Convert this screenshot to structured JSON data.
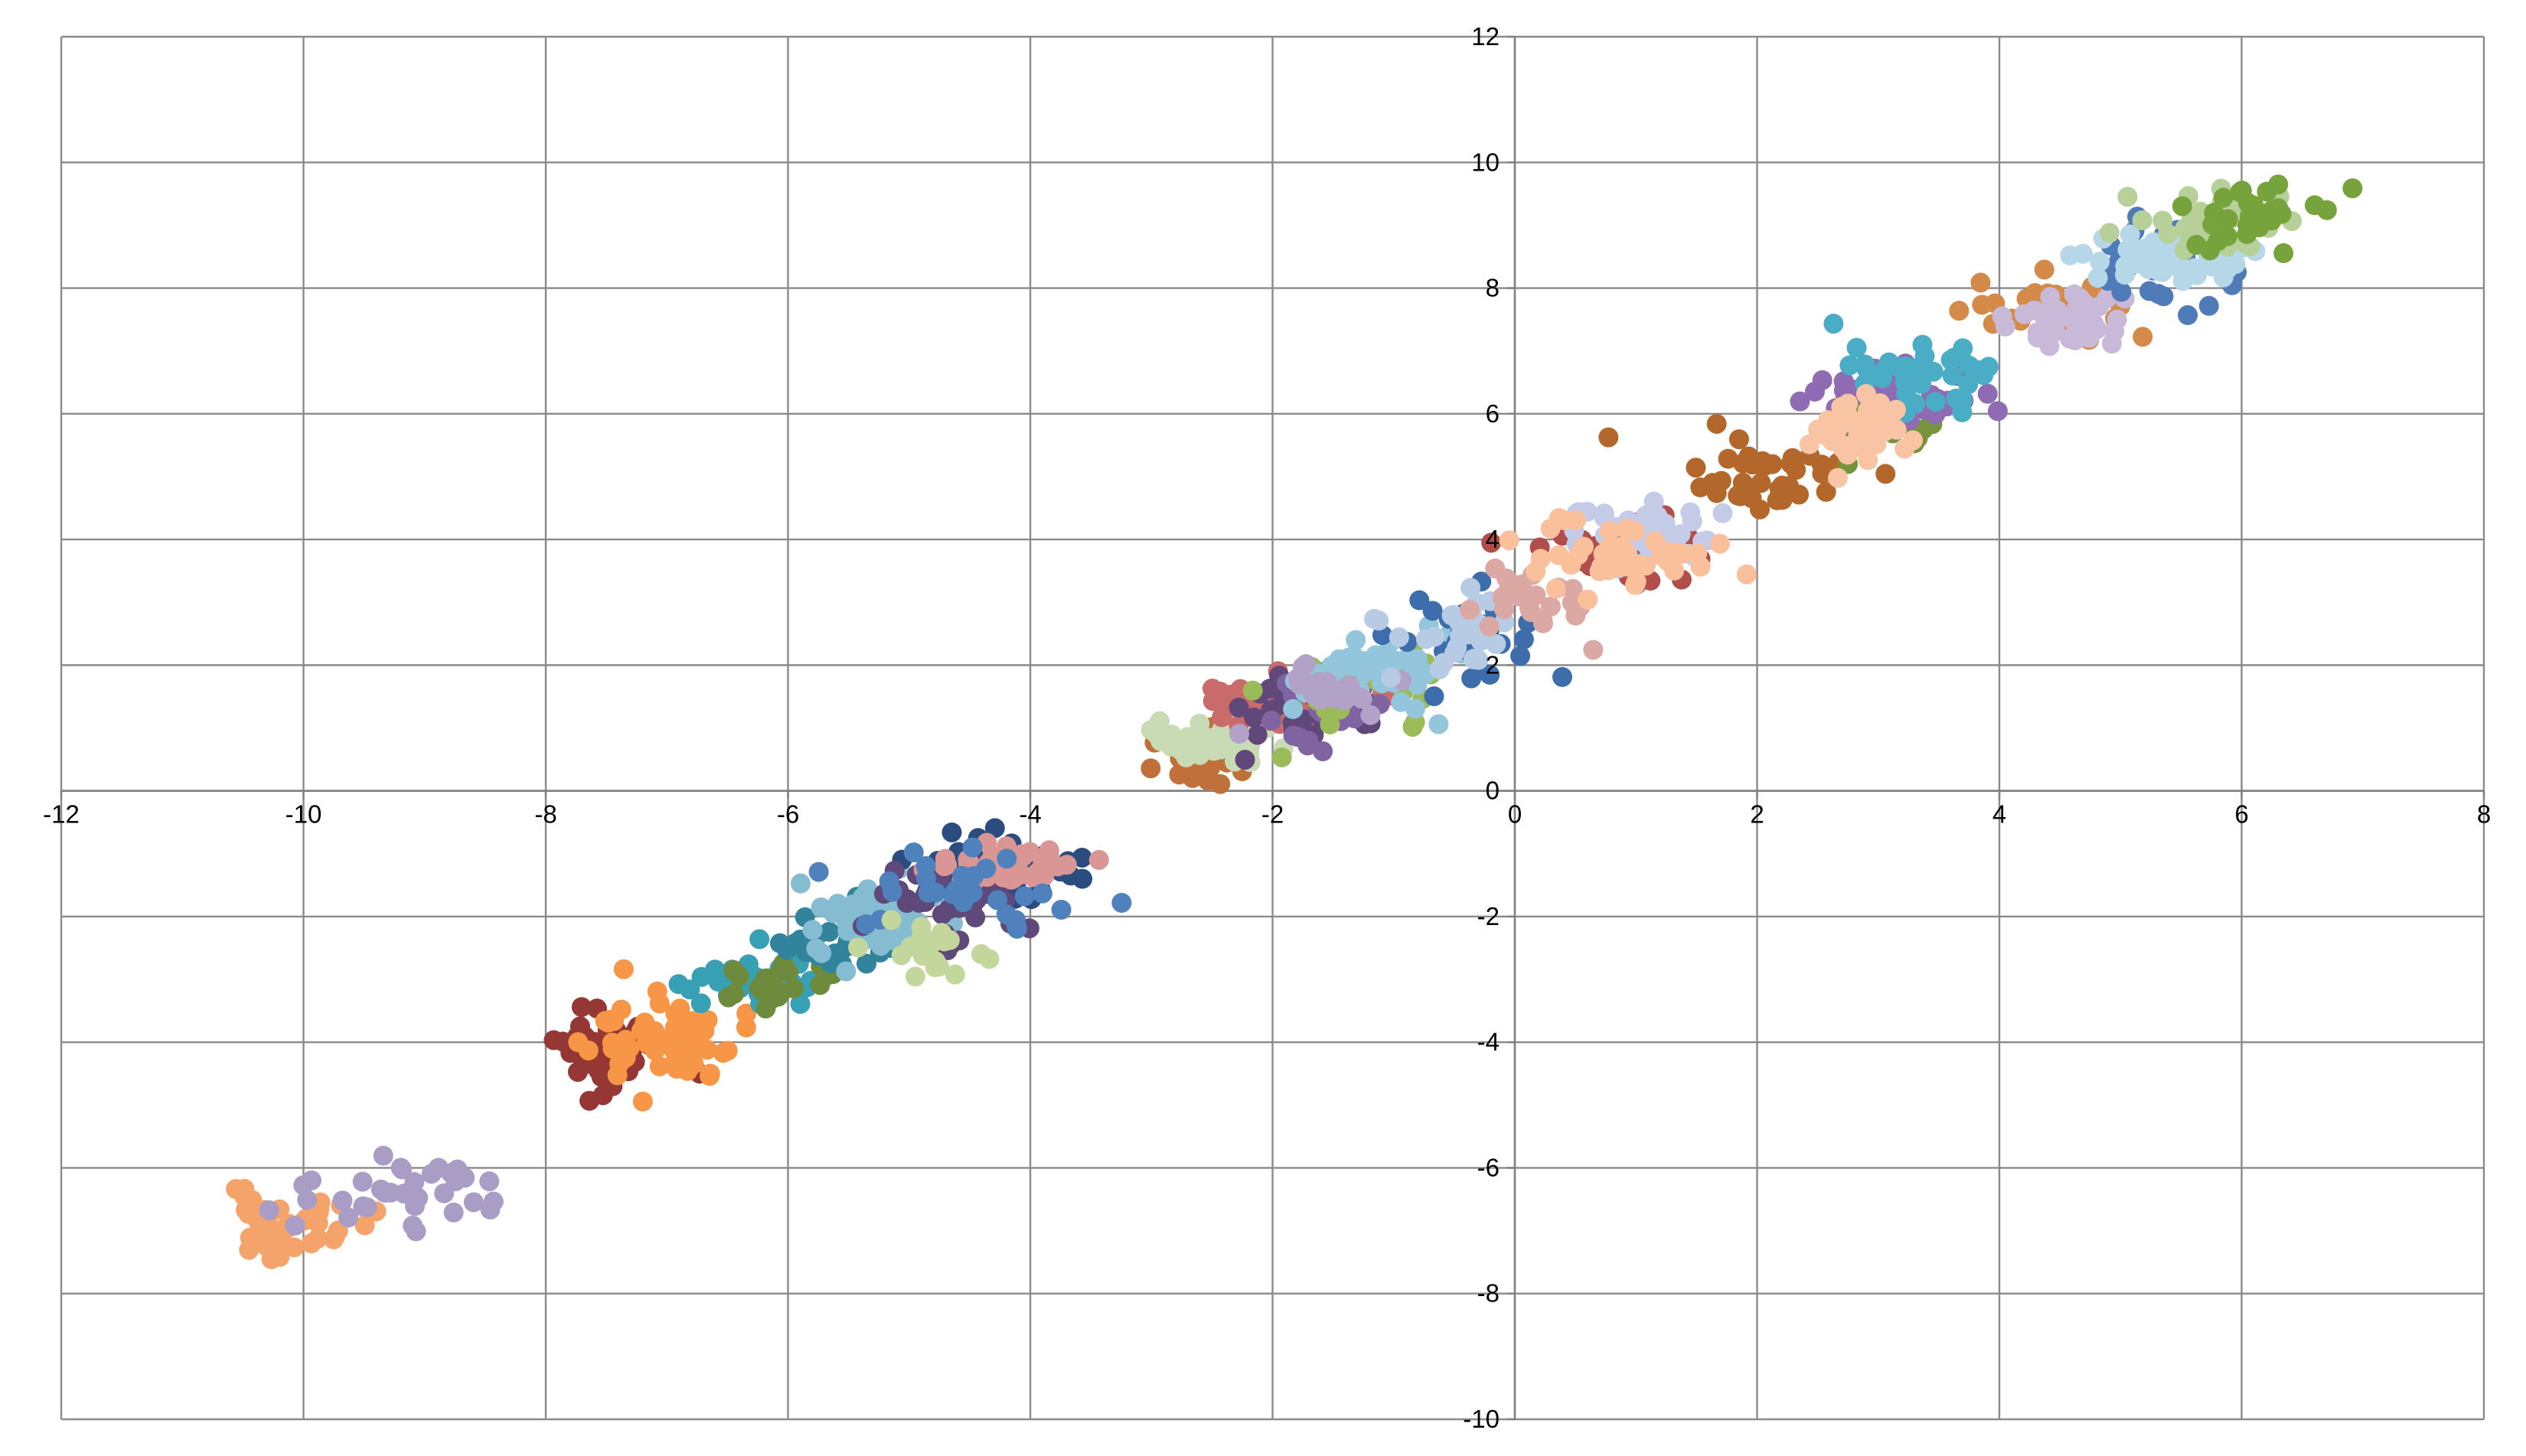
{
  "chart_data": {
    "type": "scatter",
    "title": "",
    "xlabel": "",
    "ylabel": "",
    "xlim": [
      -12,
      8
    ],
    "ylim": [
      -10,
      12
    ],
    "x_ticks": [
      -12,
      -10,
      -8,
      -6,
      -4,
      -2,
      0,
      2,
      4,
      6,
      8
    ],
    "y_ticks": [
      -10,
      -8,
      -6,
      -4,
      -2,
      0,
      2,
      4,
      6,
      8,
      10,
      12
    ],
    "x_tick_labels": [
      "-12",
      "-10",
      "-8",
      "-6",
      "-4",
      "-2",
      "0",
      "2",
      "4",
      "6",
      "8"
    ],
    "y_tick_labels": [
      "-10",
      "-8",
      "-6",
      "-4",
      "-2",
      "0",
      "2",
      "4",
      "6",
      "8",
      "10",
      "12"
    ],
    "grid": true,
    "legend": "none",
    "clusters": [
      {
        "color": "#F4A46B",
        "cx": -10.1,
        "cy": -6.9,
        "sx": 0.3,
        "sy": 0.25,
        "n": 45,
        "seed": 11
      },
      {
        "color": "#A99CC5",
        "cx": -9.3,
        "cy": -6.4,
        "sx": 0.45,
        "sy": 0.25,
        "n": 35,
        "seed": 12
      },
      {
        "color": "#953734",
        "cx": -7.5,
        "cy": -4.1,
        "sx": 0.3,
        "sy": 0.3,
        "n": 55,
        "seed": 13
      },
      {
        "color": "#F79646",
        "cx": -7.0,
        "cy": -4.0,
        "sx": 0.3,
        "sy": 0.35,
        "n": 55,
        "seed": 14
      },
      {
        "color": "#37A0B5",
        "cx": -6.3,
        "cy": -3.0,
        "sx": 0.3,
        "sy": 0.3,
        "n": 30,
        "seed": 15
      },
      {
        "color": "#6E8B3D",
        "cx": -6.1,
        "cy": -3.0,
        "sx": 0.25,
        "sy": 0.25,
        "n": 25,
        "seed": 16
      },
      {
        "color": "#31849B",
        "cx": -5.6,
        "cy": -2.3,
        "sx": 0.3,
        "sy": 0.3,
        "n": 30,
        "seed": 17
      },
      {
        "color": "#86BCD1",
        "cx": -5.2,
        "cy": -2.1,
        "sx": 0.3,
        "sy": 0.3,
        "n": 60,
        "seed": 18
      },
      {
        "color": "#2B4C7E",
        "cx": -4.3,
        "cy": -1.2,
        "sx": 0.35,
        "sy": 0.25,
        "n": 50,
        "seed": 19
      },
      {
        "color": "#5F497A",
        "cx": -4.7,
        "cy": -1.7,
        "sx": 0.3,
        "sy": 0.3,
        "n": 40,
        "seed": 20
      },
      {
        "color": "#D99694",
        "cx": -4.2,
        "cy": -1.2,
        "sx": 0.3,
        "sy": 0.2,
        "n": 45,
        "seed": 21
      },
      {
        "color": "#4F81BD",
        "cx": -4.5,
        "cy": -1.5,
        "sx": 0.4,
        "sy": 0.3,
        "n": 30,
        "seed": 22
      },
      {
        "color": "#C3D69B",
        "cx": -5.0,
        "cy": -2.5,
        "sx": 0.3,
        "sy": 0.3,
        "n": 20,
        "seed": 23
      },
      {
        "color": "#C0713A",
        "cx": -2.6,
        "cy": 0.5,
        "sx": 0.2,
        "sy": 0.25,
        "n": 25,
        "seed": 24
      },
      {
        "color": "#C9DBB5",
        "cx": -2.6,
        "cy": 0.75,
        "sx": 0.3,
        "sy": 0.2,
        "n": 40,
        "seed": 25
      },
      {
        "color": "#C96B6B",
        "cx": -1.9,
        "cy": 1.4,
        "sx": 0.4,
        "sy": 0.2,
        "n": 50,
        "seed": 26
      },
      {
        "color": "#60497A",
        "cx": -1.7,
        "cy": 1.3,
        "sx": 0.35,
        "sy": 0.3,
        "n": 30,
        "seed": 27
      },
      {
        "color": "#8064A2",
        "cx": -1.5,
        "cy": 1.3,
        "sx": 0.35,
        "sy": 0.3,
        "n": 25,
        "seed": 28
      },
      {
        "color": "#9BBB59",
        "cx": -1.3,
        "cy": 1.7,
        "sx": 0.35,
        "sy": 0.35,
        "n": 35,
        "seed": 29
      },
      {
        "color": "#93C6DD",
        "cx": -1.2,
        "cy": 1.9,
        "sx": 0.35,
        "sy": 0.3,
        "n": 50,
        "seed": 30
      },
      {
        "color": "#B3A2C7",
        "cx": -1.5,
        "cy": 1.5,
        "sx": 0.3,
        "sy": 0.25,
        "n": 20,
        "seed": 31
      },
      {
        "color": "#3D6DAA",
        "cx": -0.3,
        "cy": 2.5,
        "sx": 0.35,
        "sy": 0.35,
        "n": 30,
        "seed": 32
      },
      {
        "color": "#B7CCE4",
        "cx": -0.5,
        "cy": 2.5,
        "sx": 0.3,
        "sy": 0.3,
        "n": 30,
        "seed": 33
      },
      {
        "color": "#DBA8A3",
        "cx": 0.1,
        "cy": 3.1,
        "sx": 0.3,
        "sy": 0.3,
        "n": 25,
        "seed": 34
      },
      {
        "color": "#B14D4A",
        "cx": 0.9,
        "cy": 3.8,
        "sx": 0.35,
        "sy": 0.25,
        "n": 35,
        "seed": 35
      },
      {
        "color": "#C4CBE6",
        "cx": 1.1,
        "cy": 4.0,
        "sx": 0.3,
        "sy": 0.25,
        "n": 45,
        "seed": 36
      },
      {
        "color": "#FAC09B",
        "cx": 0.9,
        "cy": 3.8,
        "sx": 0.35,
        "sy": 0.3,
        "n": 45,
        "seed": 37
      },
      {
        "color": "#B3672B",
        "cx": 2.1,
        "cy": 5.0,
        "sx": 0.4,
        "sy": 0.3,
        "n": 40,
        "seed": 38
      },
      {
        "color": "#77933C",
        "cx": 3.0,
        "cy": 5.8,
        "sx": 0.3,
        "sy": 0.25,
        "n": 25,
        "seed": 39
      },
      {
        "color": "#8E6BB2",
        "cx": 3.1,
        "cy": 6.4,
        "sx": 0.35,
        "sy": 0.25,
        "n": 55,
        "seed": 40
      },
      {
        "color": "#4BACC6",
        "cx": 3.4,
        "cy": 6.6,
        "sx": 0.3,
        "sy": 0.3,
        "n": 45,
        "seed": 41
      },
      {
        "color": "#F9C4A3",
        "cx": 2.8,
        "cy": 5.8,
        "sx": 0.2,
        "sy": 0.25,
        "n": 50,
        "seed": 42
      },
      {
        "color": "#D48B4A",
        "cx": 4.4,
        "cy": 7.6,
        "sx": 0.35,
        "sy": 0.3,
        "n": 30,
        "seed": 43
      },
      {
        "color": "#C9B9D9",
        "cx": 4.6,
        "cy": 7.5,
        "sx": 0.3,
        "sy": 0.25,
        "n": 40,
        "seed": 44
      },
      {
        "color": "#4F7CB8",
        "cx": 5.3,
        "cy": 8.4,
        "sx": 0.3,
        "sy": 0.3,
        "n": 30,
        "seed": 45
      },
      {
        "color": "#B6D7E8",
        "cx": 5.5,
        "cy": 8.5,
        "sx": 0.3,
        "sy": 0.25,
        "n": 55,
        "seed": 46
      },
      {
        "color": "#B7D09A",
        "cx": 5.8,
        "cy": 9.0,
        "sx": 0.3,
        "sy": 0.25,
        "n": 35,
        "seed": 47
      },
      {
        "color": "#76A33C",
        "cx": 6.2,
        "cy": 9.1,
        "sx": 0.35,
        "sy": 0.3,
        "n": 30,
        "seed": 48
      }
    ]
  }
}
